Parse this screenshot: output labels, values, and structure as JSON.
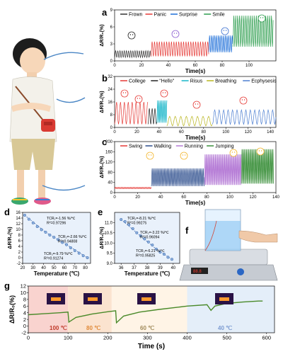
{
  "panels": {
    "a": {
      "letter": "a"
    },
    "b": {
      "letter": "b"
    },
    "c": {
      "letter": "c"
    },
    "d": {
      "letter": "d"
    },
    "e": {
      "letter": "e"
    },
    "f": {
      "letter": "f"
    },
    "g": {
      "letter": "g"
    }
  },
  "chart_data": [
    {
      "id": "a",
      "type": "line",
      "xlabel": "Time(s)",
      "ylabel": "ΔR/R₀(%)",
      "xlim": [
        0,
        120
      ],
      "ylim": [
        0,
        9
      ],
      "xticks": [
        0,
        20,
        40,
        60,
        80,
        100
      ],
      "yticks": [
        0,
        3,
        6,
        9
      ],
      "legend_position": "top",
      "series": [
        {
          "name": "Frown",
          "color": "#333333",
          "x_range": [
            0,
            27
          ],
          "base": 0.6,
          "amplitude": 1.2,
          "period": 1.6
        },
        {
          "name": "Panic",
          "color": "#e53935",
          "x_range": [
            27,
            70
          ],
          "base": 0.8,
          "amplitude": 2.6,
          "period": 1.8
        },
        {
          "name": "Surprise",
          "color": "#1e6fd9",
          "x_range": [
            70,
            88
          ],
          "base": 1.5,
          "amplitude": 3.0,
          "period": 1.3
        },
        {
          "name": "Smile",
          "color": "#2e9e4f",
          "x_range": [
            88,
            118
          ],
          "base": 2.5,
          "amplitude": 5.5,
          "period": 1.4
        }
      ]
    },
    {
      "id": "b",
      "type": "line",
      "xlabel": "Time(s)",
      "ylabel": "ΔR/R₀(%)",
      "xlim": [
        0,
        145
      ],
      "ylim": [
        0,
        32
      ],
      "xticks": [
        0,
        20,
        40,
        60,
        80,
        100,
        120,
        140
      ],
      "yticks": [
        0,
        8,
        16,
        24,
        32
      ],
      "legend_position": "top",
      "series": [
        {
          "name": "College",
          "color": "#e53935",
          "x_range": [
            0,
            30
          ],
          "base": 2,
          "amplitude": 14,
          "period": 3.5
        },
        {
          "name": "\"Hello\"",
          "color": "#222222",
          "x_range": [
            30,
            38
          ],
          "base": 2,
          "amplitude": 10,
          "period": 2.5
        },
        {
          "name": "Risus",
          "color": "#17b5c8",
          "x_range": [
            38,
            47
          ],
          "base": 3,
          "amplitude": 14,
          "period": 1.2
        },
        {
          "name": "Breathing",
          "color": "#b9b51f",
          "x_range": [
            47,
            88
          ],
          "base": 1,
          "amplitude": 6,
          "period": 5
        },
        {
          "name": "Ecphysesis",
          "color": "#4d7fd1",
          "x_range": [
            88,
            145
          ],
          "base": 2,
          "amplitude": 9,
          "period": 4
        }
      ]
    },
    {
      "id": "c",
      "type": "line",
      "xlabel": "Time(s)",
      "ylabel": "ΔR/R₀(%)",
      "xlim": [
        0,
        140
      ],
      "ylim": [
        0,
        200
      ],
      "xticks": [
        0,
        20,
        40,
        60,
        80,
        100,
        120,
        140
      ],
      "yticks": [
        0,
        40,
        80,
        120,
        160,
        200
      ],
      "legend_position": "top-left",
      "series": [
        {
          "name": "Swing",
          "color": "#e53935",
          "x_range": [
            0,
            32
          ],
          "base": 15,
          "amplitude": 6,
          "period": 1.3
        },
        {
          "name": "Walking",
          "color": "#2b4c8c",
          "x_range": [
            32,
            78
          ],
          "base": 25,
          "amplitude": 70,
          "period": 1.2
        },
        {
          "name": "Running",
          "color": "#b57bd6",
          "x_range": [
            78,
            110
          ],
          "base": 30,
          "amplitude": 120,
          "period": 0.9
        },
        {
          "name": "Jumping",
          "color": "#3a8f3a",
          "x_range": [
            110,
            138
          ],
          "base": 35,
          "amplitude": 135,
          "period": 1.0
        }
      ]
    },
    {
      "id": "d",
      "type": "scatter",
      "xlabel": "Temperature (℃)",
      "ylabel": "ΔR/R₀(%)",
      "xlim": [
        20,
        85
      ],
      "ylim": [
        -2,
        16
      ],
      "xticks": [
        20,
        30,
        40,
        50,
        60,
        70,
        80
      ],
      "yticks": [
        -2,
        0,
        2,
        4,
        6,
        8,
        10,
        12,
        14,
        16
      ],
      "x": [
        22,
        26,
        30,
        34,
        38,
        42,
        46,
        50,
        54,
        58,
        62,
        66,
        70,
        74,
        78,
        82
      ],
      "y": [
        15.0,
        13.6,
        12.3,
        11.0,
        9.9,
        9.0,
        8.0,
        7.2,
        6.4,
        5.4,
        4.6,
        3.5,
        2.5,
        1.6,
        0.7,
        0.0
      ],
      "annotations": [
        {
          "lines": [
            "TCR₁=-1.56 %/℃",
            "R²=0.97296"
          ]
        },
        {
          "lines": [
            "TCR₂=-2.66 %/℃",
            "R²=0.94808"
          ]
        },
        {
          "lines": [
            "TCR₃=-9.79 %/℃",
            "R²=0.91274"
          ]
        }
      ]
    },
    {
      "id": "e",
      "type": "scatter",
      "xlabel": "Temperature (℃)",
      "ylabel": "ΔR/R₀(%)",
      "xlim": [
        35.5,
        40.5
      ],
      "ylim": [
        9.0,
        11.5
      ],
      "xticks": [
        36,
        37,
        38,
        39,
        40
      ],
      "yticks": [
        9.0,
        9.5,
        10.0,
        10.5,
        11.0
      ],
      "x": [
        36,
        36.3,
        36.6,
        36.9,
        37.2,
        37.5,
        37.8,
        38.1,
        38.4,
        38.7,
        39,
        39.3,
        39.6,
        39.9
      ],
      "y": [
        11.15,
        11.05,
        10.9,
        10.7,
        10.5,
        10.35,
        10.2,
        10.05,
        9.9,
        9.7,
        9.55,
        9.45,
        9.3,
        9.2
      ],
      "annotations": [
        {
          "lines": [
            "TCR₁=-8.21 %/℃",
            "R²=0.99275"
          ]
        },
        {
          "lines": [
            "TCR₂=-3.22 %/℃",
            "R²=0.96094"
          ]
        },
        {
          "lines": [
            "TCR₃=-6.21 %/℃",
            "R²=0.95825"
          ]
        }
      ]
    },
    {
      "id": "g",
      "type": "line",
      "xlabel": "Time (s)",
      "ylabel": "ΔR/R₀(%)",
      "xlim": [
        0,
        620
      ],
      "ylim": [
        -2,
        12
      ],
      "xticks": [
        0,
        100,
        200,
        300,
        400,
        500,
        600
      ],
      "yticks": [
        -2,
        0,
        2,
        4,
        6,
        8,
        10,
        12
      ],
      "background_bands": [
        {
          "from": 0,
          "to": 100,
          "color": "#f9d3cf"
        },
        {
          "from": 100,
          "to": 210,
          "color": "#fbe3cf"
        },
        {
          "from": 210,
          "to": 400,
          "color": "#fff4e6"
        },
        {
          "from": 400,
          "to": 620,
          "color": "#e4eef9"
        }
      ],
      "series": [
        {
          "name": "response",
          "color": "#4a8a2a",
          "x": [
            0,
            40,
            80,
            100,
            102,
            120,
            160,
            200,
            220,
            222,
            240,
            280,
            330,
            380,
            400,
            450,
            460,
            470,
            500,
            540,
            580,
            590
          ],
          "y": [
            3.4,
            3.7,
            4.0,
            4.2,
            1.2,
            2.6,
            3.6,
            4.3,
            4.6,
            1.0,
            3.0,
            4.2,
            5.0,
            5.7,
            6.0,
            6.4,
            4.7,
            6.0,
            6.8,
            7.2,
            7.5,
            7.5
          ]
        }
      ],
      "annotations": [
        {
          "label": "100 ℃",
          "color": "#c0392b"
        },
        {
          "label": "80 ℃",
          "color": "#e08a3a"
        },
        {
          "label": "60 ℃",
          "color": "#a08a5a"
        },
        {
          "label": "40 ℃",
          "color": "#7a9ad1"
        }
      ]
    }
  ]
}
